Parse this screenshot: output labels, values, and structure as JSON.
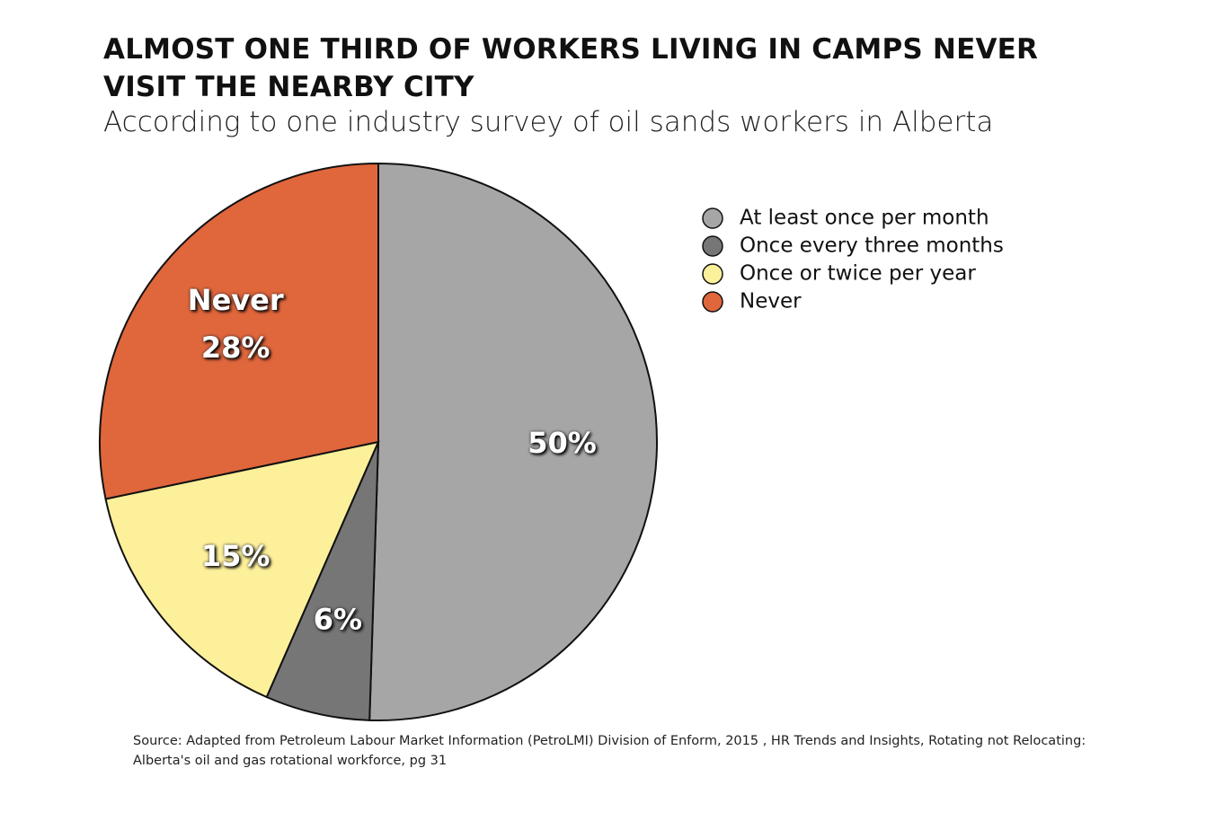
{
  "chart_data": {
    "type": "pie",
    "title": "ALMOST ONE THIRD OF WORKERS LIVING IN CAMPS NEVER VISIT THE NEARBY CITY",
    "subtitle": "According to one industry survey of oil sands workers in Alberta",
    "categories": [
      "At least once per month",
      "Once every three months",
      "Once or twice per year",
      "Never"
    ],
    "values": [
      50,
      6,
      15,
      28
    ],
    "value_labels": [
      "50%",
      "6%",
      "15%",
      "28%"
    ],
    "colors": [
      "#a6a6a6",
      "#767676",
      "#fdf09a",
      "#e0663c"
    ],
    "legend": "right",
    "source": "Source: Adapted from Petroleum Labour Market Information (PetroLMI) Division of Enform, 2015 , HR Trends and Insights, Rotating not Relocating: Alberta's oil and gas rotational workforce, pg 31"
  }
}
